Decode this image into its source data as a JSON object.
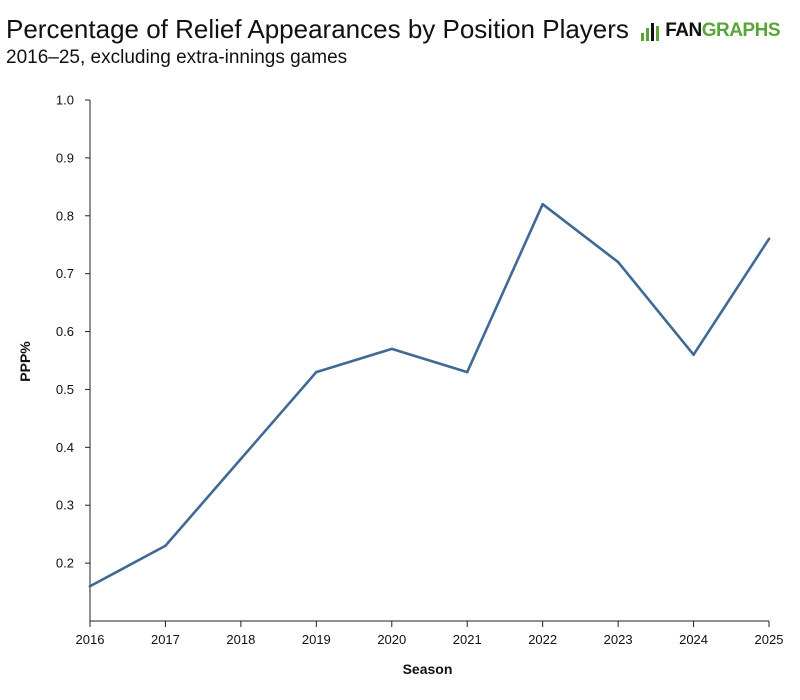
{
  "header": {
    "title": "Percentage of Relief Appearances by Position Players",
    "subtitle": "2016–25, excluding extra-innings games"
  },
  "logo": {
    "part1": "FAN",
    "part2": "GRAPHS",
    "brand_color": "#5aa53a"
  },
  "chart_data": {
    "type": "line",
    "title": "Percentage of Relief Appearances by Position Players",
    "subtitle": "2016–25, excluding extra-innings games",
    "xlabel": "Season",
    "ylabel": "PPP%",
    "x": [
      2016,
      2017,
      2018,
      2019,
      2020,
      2021,
      2022,
      2023,
      2024,
      2025
    ],
    "series": [
      {
        "values": [
          0.16,
          0.23,
          0.38,
          0.53,
          0.57,
          0.53,
          0.82,
          0.72,
          0.56,
          0.76
        ],
        "color": "#3f6a96"
      }
    ],
    "ylim": [
      0.1,
      1.0
    ],
    "xlim": [
      2016,
      2025
    ],
    "yticks": [
      "0.2",
      "0.3",
      "0.4",
      "0.5",
      "0.6",
      "0.7",
      "0.8",
      "0.9",
      "1.0"
    ],
    "xticks": [
      "2016",
      "2017",
      "2018",
      "2019",
      "2020",
      "2021",
      "2022",
      "2023",
      "2024",
      "2025"
    ],
    "grid": false,
    "legend": "none"
  }
}
